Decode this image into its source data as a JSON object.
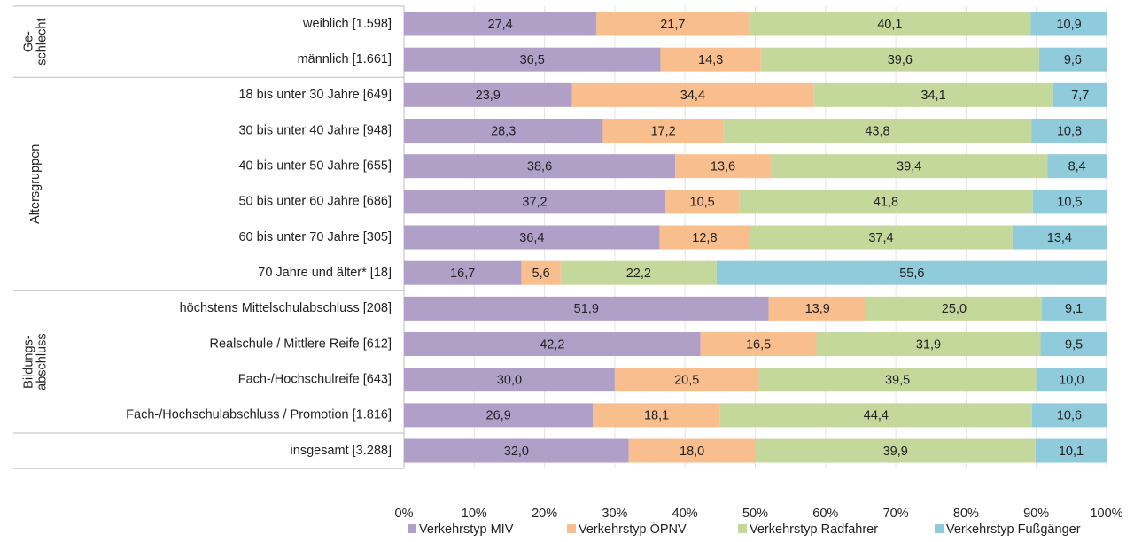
{
  "chart_data": {
    "type": "stacked_barh",
    "categories": [
      "weiblich [1.598]",
      "männlich [1.661]",
      "18 bis unter 30 Jahre [649]",
      "30 bis unter 40 Jahre [948]",
      "40 bis unter 50 Jahre [655]",
      "50 bis unter 60 Jahre [686]",
      "60 bis unter 70 Jahre [305]",
      "70 Jahre und älter* [18]",
      "höchstens Mittelschulabschluss [208]",
      "Realschule / Mittlere Reife [612]",
      "Fach-/Hochschulreife [643]",
      "Fach-/Hochschulabschluss / Promotion [1.816]",
      "insgesamt [3.288]"
    ],
    "group_labels": [
      [
        "Ge-",
        "schlecht"
      ],
      [
        "Altersgruppen"
      ],
      [
        "Bildungs-",
        "abschluss"
      ]
    ],
    "series": [
      {
        "name": "Verkehrstyp MIV",
        "color": "#b0a0c8",
        "values": [
          27.4,
          36.5,
          23.9,
          28.3,
          38.6,
          37.2,
          36.4,
          16.7,
          51.9,
          42.2,
          30.0,
          26.9,
          32.0
        ],
        "value_labels": [
          "27,4",
          "36,5",
          "23,9",
          "28,3",
          "38,6",
          "37,2",
          "36,4",
          "16,7",
          "51,9",
          "42,2",
          "30,0",
          "26,9",
          "32,0"
        ]
      },
      {
        "name": "Verkehrstyp ÖPNV",
        "color": "#f9be8e",
        "values": [
          21.7,
          14.3,
          34.4,
          17.2,
          13.6,
          10.5,
          12.8,
          5.6,
          13.9,
          16.5,
          20.5,
          18.1,
          18.0
        ],
        "value_labels": [
          "21,7",
          "14,3",
          "34,4",
          "17,2",
          "13,6",
          "10,5",
          "12,8",
          "5,6",
          "13,9",
          "16,5",
          "20,5",
          "18,1",
          "18,0"
        ]
      },
      {
        "name": "Verkehrstyp Radfahrer",
        "color": "#c4d89c",
        "values": [
          40.1,
          39.6,
          34.1,
          43.8,
          39.4,
          41.8,
          37.4,
          22.2,
          25.0,
          31.9,
          39.5,
          44.4,
          39.9
        ],
        "value_labels": [
          "40,1",
          "39,6",
          "34,1",
          "43,8",
          "39,4",
          "41,8",
          "37,4",
          "22,2",
          "25,0",
          "31,9",
          "39,5",
          "44,4",
          "39,9"
        ]
      },
      {
        "name": "Verkehrstyp Fußgänger",
        "color": "#8fcbdb",
        "values": [
          10.9,
          9.6,
          7.7,
          10.8,
          8.4,
          10.5,
          13.4,
          55.6,
          9.1,
          9.5,
          10.0,
          10.6,
          10.1
        ],
        "value_labels": [
          "10,9",
          "9,6",
          "7,7",
          "10,8",
          "8,4",
          "10,5",
          "13,4",
          "55,6",
          "9,1",
          "9,5",
          "10,0",
          "10,6",
          "10,1"
        ]
      }
    ],
    "xlim": [
      0,
      100
    ],
    "xticks": [
      {
        "value": 0,
        "label": "0%"
      },
      {
        "value": 10,
        "label": "10%"
      },
      {
        "value": 20,
        "label": "20%"
      },
      {
        "value": 30,
        "label": "30%"
      },
      {
        "value": 40,
        "label": "40%"
      },
      {
        "value": 50,
        "label": "50%"
      },
      {
        "value": 60,
        "label": "60%"
      },
      {
        "value": 70,
        "label": "70%"
      },
      {
        "value": 80,
        "label": "80%"
      },
      {
        "value": 90,
        "label": "90%"
      },
      {
        "value": 100,
        "label": "100%"
      }
    ],
    "grid": true,
    "legend": "bottom"
  }
}
